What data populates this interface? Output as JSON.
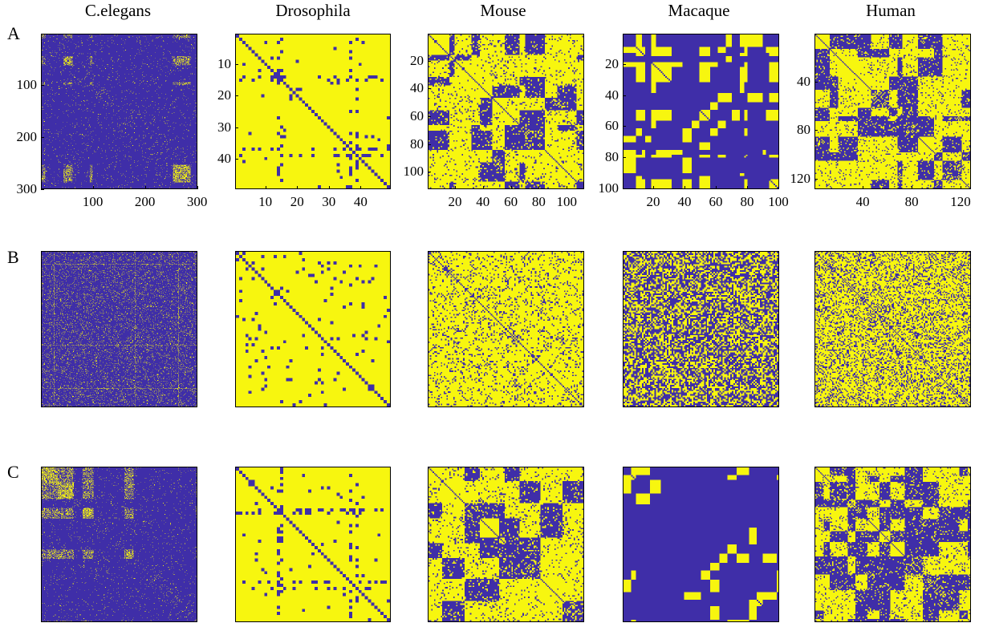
{
  "colors": {
    "off": "#3f2ea8",
    "on": "#f7f60f"
  },
  "row_labels": [
    "A",
    "B",
    "C"
  ],
  "chart_data": [
    {
      "type": "heatmap",
      "row": "A",
      "title": "C.elegans",
      "n": 300,
      "xticks": [
        "100",
        "200",
        "300"
      ],
      "xtick_values": [
        100,
        200,
        300
      ],
      "yticks": [
        "100",
        "200",
        "300"
      ],
      "ytick_values": [
        100,
        200,
        300
      ],
      "density": 0.1,
      "style": "blocky-sparse"
    },
    {
      "type": "heatmap",
      "row": "A",
      "title": "Drosophila",
      "n": 49,
      "xticks": [
        "10",
        "20",
        "30",
        "40"
      ],
      "xtick_values": [
        10,
        20,
        30,
        40
      ],
      "yticks": [
        "10",
        "20",
        "30",
        "40"
      ],
      "ytick_values": [
        10,
        20,
        30,
        40
      ],
      "density": 0.88,
      "style": "cross-structure"
    },
    {
      "type": "heatmap",
      "row": "A",
      "title": "Mouse",
      "n": 112,
      "xticks": [
        "20",
        "40",
        "60",
        "80",
        "100"
      ],
      "xtick_values": [
        20,
        40,
        60,
        80,
        100
      ],
      "yticks": [
        "20",
        "40",
        "60",
        "80",
        "100"
      ],
      "ytick_values": [
        20,
        40,
        60,
        80,
        100
      ],
      "density": 0.7,
      "style": "modular"
    },
    {
      "type": "heatmap",
      "row": "A",
      "title": "Macaque",
      "n": 100,
      "xticks": [
        "20",
        "40",
        "60",
        "80",
        "100"
      ],
      "xtick_values": [
        20,
        40,
        60,
        80,
        100
      ],
      "yticks": [
        "20",
        "40",
        "60",
        "80",
        "100"
      ],
      "ytick_values": [
        20,
        40,
        60,
        80,
        100
      ],
      "density": 0.45,
      "style": "banded"
    },
    {
      "type": "heatmap",
      "row": "A",
      "title": "Human",
      "n": 128,
      "xticks": [
        "40",
        "80",
        "120"
      ],
      "xtick_values": [
        40,
        80,
        120
      ],
      "yticks": [
        "40",
        "80",
        "120"
      ],
      "ytick_values": [
        40,
        80,
        120
      ],
      "density": 0.6,
      "style": "modular"
    },
    {
      "type": "heatmap",
      "row": "B",
      "n": 300,
      "density": 0.08,
      "style": "random-lines"
    },
    {
      "type": "heatmap",
      "row": "B",
      "n": 49,
      "density": 0.95,
      "style": "random"
    },
    {
      "type": "heatmap",
      "row": "B",
      "n": 112,
      "density": 0.85,
      "style": "random"
    },
    {
      "type": "heatmap",
      "row": "B",
      "n": 100,
      "density": 0.45,
      "style": "random"
    },
    {
      "type": "heatmap",
      "row": "B",
      "n": 128,
      "density": 0.72,
      "style": "random"
    },
    {
      "type": "heatmap",
      "row": "C",
      "n": 300,
      "density": 0.08,
      "style": "blocky-sparse"
    },
    {
      "type": "heatmap",
      "row": "C",
      "n": 49,
      "density": 0.8,
      "style": "cross-structure"
    },
    {
      "type": "heatmap",
      "row": "C",
      "n": 112,
      "density": 0.6,
      "style": "modular"
    },
    {
      "type": "heatmap",
      "row": "C",
      "n": 100,
      "density": 0.45,
      "style": "banded"
    },
    {
      "type": "heatmap",
      "row": "C",
      "n": 128,
      "density": 0.55,
      "style": "modular"
    }
  ]
}
